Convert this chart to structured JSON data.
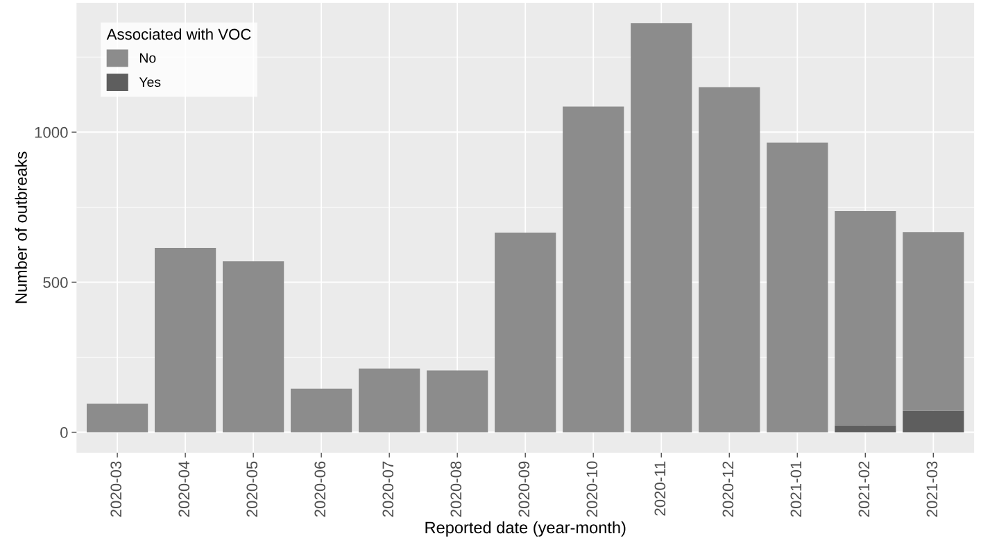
{
  "chart_data": {
    "type": "bar",
    "stacked": true,
    "xlabel": "Reported date (year-month)",
    "ylabel": "Number of outbreaks",
    "legend_title": "Associated with VOC",
    "legend": "top left",
    "grid": true,
    "categories": [
      "2020-03",
      "2020-04",
      "2020-05",
      "2020-06",
      "2020-07",
      "2020-08",
      "2020-09",
      "2020-10",
      "2020-11",
      "2020-12",
      "2021-01",
      "2021-02",
      "2021-03"
    ],
    "series": [
      {
        "name": "Yes",
        "color": "#5e5e5e",
        "values": [
          0,
          0,
          0,
          0,
          0,
          0,
          0,
          0,
          0,
          0,
          0,
          23,
          72
        ]
      },
      {
        "name": "No",
        "color": "#8c8c8c",
        "values": [
          95,
          614,
          570,
          145,
          212,
          206,
          665,
          1085,
          1363,
          1150,
          965,
          714,
          595
        ]
      }
    ],
    "ylim": [
      -68,
      1431
    ],
    "yticks": [
      0,
      500,
      1000
    ]
  }
}
